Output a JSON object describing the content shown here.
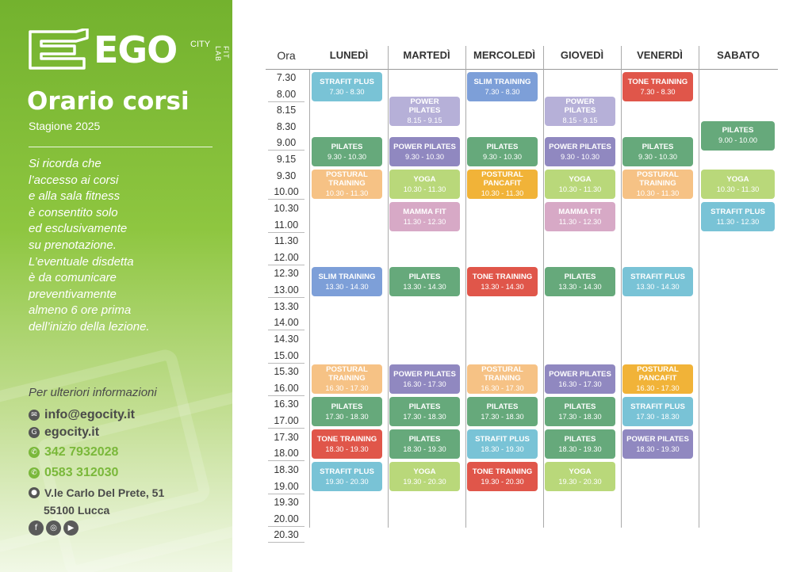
{
  "brand": {
    "main": "EGO",
    "city": "CITY",
    "fitlab": "FIT LAB"
  },
  "title": "Orario corsi",
  "season": "Stagione 2025",
  "notice_lines": [
    "Si ricorda che",
    "l’accesso ai corsi",
    "e alla sala fitness",
    "è consentito solo",
    "ed esclusivamente",
    "su prenotazione.",
    "L’eventuale disdetta",
    "è da comunicare",
    "preventivamente",
    "almeno 6 ore prima",
    "dell’inizio della lezione."
  ],
  "contacts": {
    "heading": "Per ulteriori informazioni",
    "email": "info@egocity.it",
    "website": "egocity.it",
    "whatsapp": "342 7932028",
    "phone": "0583 312030",
    "address_line1": "V.le Carlo Del Prete, 51",
    "address_line2": "55100 Lucca",
    "social_icons": [
      "facebook-icon",
      "instagram-icon",
      "youtube-icon"
    ]
  },
  "schedule": {
    "time_header": "Ora",
    "days": [
      "LUNEDÌ",
      "MARTEDÌ",
      "MERCOLEDÌ",
      "GIOVEDÌ",
      "VENERDÌ",
      "SABATO"
    ],
    "time_labels": [
      "7.30",
      "8.00",
      "8.15",
      "8.30",
      "9.00",
      "9.15",
      "9.30",
      "10.00",
      "10.30",
      "11.00",
      "11.30",
      "12.00",
      "12.30",
      "13.00",
      "13.30",
      "14.00",
      "14.30",
      "15.00",
      "15.30",
      "16.00",
      "16.30",
      "17.00",
      "17.30",
      "18.00",
      "18.30",
      "19.00",
      "19.30",
      "20.00",
      "20.30"
    ],
    "colors": {
      "blue": "#7d9fd8",
      "teal": "#79c3d6",
      "red": "#e0564a",
      "lavender": "#b6b0d8",
      "green": "#66a97b",
      "purple": "#9088c0",
      "peach": "#f6c285",
      "orange": "#f1b338",
      "lime": "#b9d87a",
      "mauve": "#d7a9c6"
    },
    "classes": [
      {
        "day": 0,
        "name": "STRAFIT PLUS",
        "time": "7.30 - 8.30",
        "start": "7.30",
        "end": "8.30",
        "color": "teal"
      },
      {
        "day": 0,
        "name": "PILATES",
        "time": "9.30 - 10.30",
        "start": "9.30",
        "end": "10.30",
        "color": "green"
      },
      {
        "day": 0,
        "name": "POSTURAL\nTRAINING",
        "time": "10.30 - 11.30",
        "start": "10.30",
        "end": "11.30",
        "color": "peach"
      },
      {
        "day": 0,
        "name": "SLIM TRAINING",
        "time": "13.30 - 14.30",
        "start": "13.30",
        "end": "14.30",
        "color": "blue"
      },
      {
        "day": 0,
        "name": "POSTURAL\nTRAINING",
        "time": "16.30 - 17.30",
        "start": "16.30",
        "end": "17.30",
        "color": "peach"
      },
      {
        "day": 0,
        "name": "PILATES",
        "time": "17.30 - 18.30",
        "start": "17.30",
        "end": "18.30",
        "color": "green"
      },
      {
        "day": 0,
        "name": "TONE TRAINING",
        "time": "18.30 - 19.30",
        "start": "18.30",
        "end": "19.30",
        "color": "red"
      },
      {
        "day": 0,
        "name": "STRAFIT PLUS",
        "time": "19.30 - 20.30",
        "start": "19.30",
        "end": "20.30",
        "color": "teal"
      },
      {
        "day": 1,
        "name": "POWER\nPILATES",
        "time": "8.15 - 9.15",
        "start": "8.15",
        "end": "9.15",
        "color": "lavender"
      },
      {
        "day": 1,
        "name": "POWER PILATES",
        "time": "9.30 - 10.30",
        "start": "9.30",
        "end": "10.30",
        "color": "purple"
      },
      {
        "day": 1,
        "name": "YOGA",
        "time": "10.30 - 11.30",
        "start": "10.30",
        "end": "11.30",
        "color": "lime"
      },
      {
        "day": 1,
        "name": "MAMMA FIT",
        "time": "11.30 - 12.30",
        "start": "11.30",
        "end": "12.30",
        "color": "mauve"
      },
      {
        "day": 1,
        "name": "PILATES",
        "time": "13.30 - 14.30",
        "start": "13.30",
        "end": "14.30",
        "color": "green"
      },
      {
        "day": 1,
        "name": "POWER PILATES",
        "time": "16.30 - 17.30",
        "start": "16.30",
        "end": "17.30",
        "color": "purple"
      },
      {
        "day": 1,
        "name": "PILATES",
        "time": "17.30 - 18.30",
        "start": "17.30",
        "end": "18.30",
        "color": "green"
      },
      {
        "day": 1,
        "name": "PILATES",
        "time": "18.30 - 19.30",
        "start": "18.30",
        "end": "19.30",
        "color": "green"
      },
      {
        "day": 1,
        "name": "YOGA",
        "time": "19.30 - 20.30",
        "start": "19.30",
        "end": "20.30",
        "color": "lime"
      },
      {
        "day": 2,
        "name": "SLIM TRAINING",
        "time": "7.30 - 8.30",
        "start": "7.30",
        "end": "8.30",
        "color": "blue"
      },
      {
        "day": 2,
        "name": "PILATES",
        "time": "9.30 - 10.30",
        "start": "9.30",
        "end": "10.30",
        "color": "green"
      },
      {
        "day": 2,
        "name": "POSTURAL\nPANCAFIT",
        "time": "10.30 - 11.30",
        "start": "10.30",
        "end": "11.30",
        "color": "orange"
      },
      {
        "day": 2,
        "name": "TONE TRAINING",
        "time": "13.30 - 14.30",
        "start": "13.30",
        "end": "14.30",
        "color": "red"
      },
      {
        "day": 2,
        "name": "POSTURAL\nTRAINING",
        "time": "16.30 - 17.30",
        "start": "16.30",
        "end": "17.30",
        "color": "peach"
      },
      {
        "day": 2,
        "name": "PILATES",
        "time": "17.30 - 18.30",
        "start": "17.30",
        "end": "18.30",
        "color": "green"
      },
      {
        "day": 2,
        "name": "STRAFIT PLUS",
        "time": "18.30 - 19.30",
        "start": "18.30",
        "end": "19.30",
        "color": "teal"
      },
      {
        "day": 2,
        "name": "TONE TRAINING",
        "time": "19.30 - 20.30",
        "start": "19.30",
        "end": "20.30",
        "color": "red"
      },
      {
        "day": 3,
        "name": "POWER\nPILATES",
        "time": "8.15 - 9.15",
        "start": "8.15",
        "end": "9.15",
        "color": "lavender"
      },
      {
        "day": 3,
        "name": "POWER PILATES",
        "time": "9.30 - 10.30",
        "start": "9.30",
        "end": "10.30",
        "color": "purple"
      },
      {
        "day": 3,
        "name": "YOGA",
        "time": "10.30 - 11.30",
        "start": "10.30",
        "end": "11.30",
        "color": "lime"
      },
      {
        "day": 3,
        "name": "MAMMA FIT",
        "time": "11.30 - 12.30",
        "start": "11.30",
        "end": "12.30",
        "color": "mauve"
      },
      {
        "day": 3,
        "name": "PILATES",
        "time": "13.30 - 14.30",
        "start": "13.30",
        "end": "14.30",
        "color": "green"
      },
      {
        "day": 3,
        "name": "POWER PILATES",
        "time": "16.30 - 17.30",
        "start": "16.30",
        "end": "17.30",
        "color": "purple"
      },
      {
        "day": 3,
        "name": "PILATES",
        "time": "17.30 - 18.30",
        "start": "17.30",
        "end": "18.30",
        "color": "green"
      },
      {
        "day": 3,
        "name": "PILATES",
        "time": "18.30 - 19.30",
        "start": "18.30",
        "end": "19.30",
        "color": "green"
      },
      {
        "day": 3,
        "name": "YOGA",
        "time": "19.30 - 20.30",
        "start": "19.30",
        "end": "20.30",
        "color": "lime"
      },
      {
        "day": 4,
        "name": "TONE TRAINING",
        "time": "7.30 - 8.30",
        "start": "7.30",
        "end": "8.30",
        "color": "red"
      },
      {
        "day": 4,
        "name": "PILATES",
        "time": "9.30 - 10.30",
        "start": "9.30",
        "end": "10.30",
        "color": "green"
      },
      {
        "day": 4,
        "name": "POSTURAL\nTRAINING",
        "time": "10.30 - 11.30",
        "start": "10.30",
        "end": "11.30",
        "color": "peach"
      },
      {
        "day": 4,
        "name": "STRAFIT PLUS",
        "time": "13.30 - 14.30",
        "start": "13.30",
        "end": "14.30",
        "color": "teal"
      },
      {
        "day": 4,
        "name": "POSTURAL\nPANCAFIT",
        "time": "16.30 - 17.30",
        "start": "16.30",
        "end": "17.30",
        "color": "orange"
      },
      {
        "day": 4,
        "name": "STRAFIT PLUS",
        "time": "17.30 - 18.30",
        "start": "17.30",
        "end": "18.30",
        "color": "teal"
      },
      {
        "day": 4,
        "name": "POWER PILATES",
        "time": "18.30 - 19.30",
        "start": "18.30",
        "end": "19.30",
        "color": "purple"
      },
      {
        "day": 5,
        "name": "PILATES",
        "time": "9.00 - 10.00",
        "start": "9.00",
        "end": "10.00",
        "color": "green"
      },
      {
        "day": 5,
        "name": "YOGA",
        "time": "10.30 - 11.30",
        "start": "10.30",
        "end": "11.30",
        "color": "lime"
      },
      {
        "day": 5,
        "name": "STRAFIT PLUS",
        "time": "11.30 - 12.30",
        "start": "11.30",
        "end": "12.30",
        "color": "teal"
      }
    ]
  }
}
